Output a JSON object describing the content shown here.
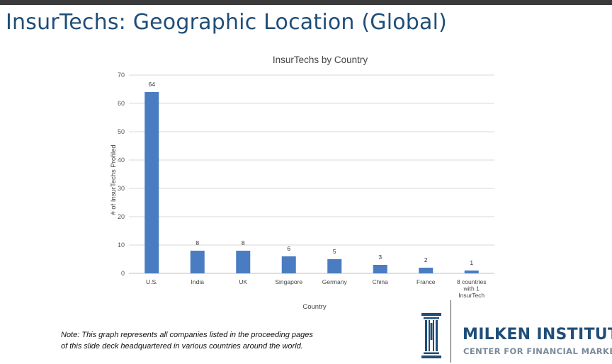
{
  "slide": {
    "title": "InsurTechs: Geographic Location (Global)",
    "note_line1": "Note: This graph represents all companies listed in the proceeding pages",
    "note_line2": "of this slide deck headquartered in various countries around the world."
  },
  "logo": {
    "name": "MILKEN INSTITUTE",
    "subtitle": "CENTER FOR FINANCIAL MARKETS",
    "icon": "column-building-icon"
  },
  "colors": {
    "title": "#1f4e79",
    "bar": "#4a7cc1",
    "gridline": "#d9d9d9",
    "logo_sub": "#7a8a99"
  },
  "chart_data": {
    "type": "bar",
    "title": "InsurTechs by Country",
    "xlabel": "Country",
    "ylabel": "# of InsurTechs Profiled",
    "categories": [
      "U.S.",
      "India",
      "UK",
      "Singapore",
      "Germany",
      "China",
      "France",
      "8 countries with 1 InsurTech"
    ],
    "category_lines": [
      [
        "U.S."
      ],
      [
        "India"
      ],
      [
        "UK"
      ],
      [
        "Singapore"
      ],
      [
        "Germany"
      ],
      [
        "China"
      ],
      [
        "France"
      ],
      [
        "8 countries",
        "with 1",
        "InsurTech"
      ]
    ],
    "values": [
      64,
      8,
      8,
      6,
      5,
      3,
      2,
      1
    ],
    "data_labels": [
      "64",
      "8",
      "8",
      "6",
      "5",
      "3",
      "2",
      "1"
    ],
    "ylim": [
      0,
      70
    ],
    "yticks": [
      0,
      10,
      20,
      30,
      40,
      50,
      60,
      70
    ],
    "grid": true,
    "legend": "none"
  }
}
